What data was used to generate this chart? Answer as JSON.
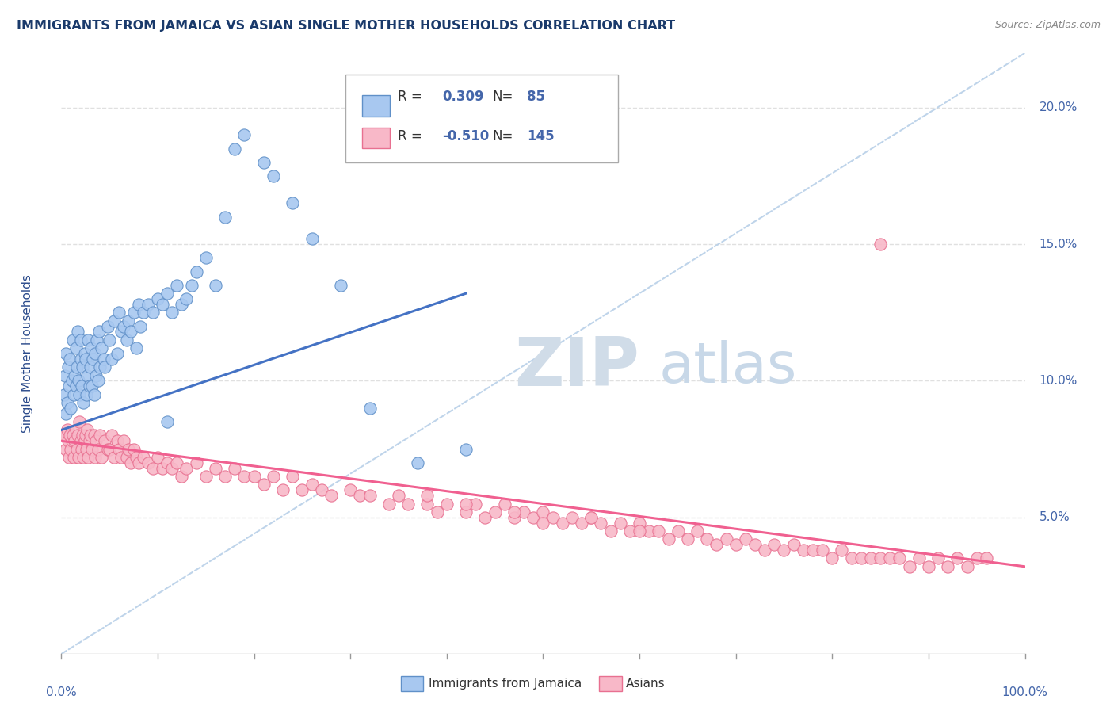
{
  "title": "IMMIGRANTS FROM JAMAICA VS ASIAN SINGLE MOTHER HOUSEHOLDS CORRELATION CHART",
  "source": "Source: ZipAtlas.com",
  "ylabel": "Single Mother Households",
  "watermark_zip": "ZIP",
  "watermark_atlas": "atlas",
  "blue_color": "#a8c8f0",
  "pink_color": "#f8b8c8",
  "blue_edge_color": "#6090c8",
  "pink_edge_color": "#e87090",
  "blue_line_color": "#4472c4",
  "pink_line_color": "#f06090",
  "dashed_line_color": "#b8d0e8",
  "title_color": "#1a3a6b",
  "source_color": "#888888",
  "axis_label_color": "#2a4a8b",
  "tick_color": "#4466aa",
  "background_color": "#ffffff",
  "grid_color": "#e0e0e0",
  "ytick_labels": [
    "5.0%",
    "10.0%",
    "15.0%",
    "20.0%"
  ],
  "ytick_values": [
    5.0,
    10.0,
    15.0,
    20.0
  ],
  "xlim": [
    0.0,
    100.0
  ],
  "ylim": [
    0.0,
    22.0
  ],
  "blue_line_x": [
    0.0,
    42.0
  ],
  "blue_line_y": [
    8.2,
    13.2
  ],
  "pink_line_x": [
    0.0,
    100.0
  ],
  "pink_line_y": [
    7.8,
    3.2
  ],
  "blue_scatter_x": [
    0.3,
    0.4,
    0.5,
    0.5,
    0.6,
    0.7,
    0.8,
    0.9,
    1.0,
    1.1,
    1.2,
    1.3,
    1.4,
    1.5,
    1.5,
    1.6,
    1.7,
    1.8,
    1.9,
    2.0,
    2.0,
    2.1,
    2.2,
    2.3,
    2.4,
    2.5,
    2.6,
    2.7,
    2.8,
    2.9,
    3.0,
    3.1,
    3.2,
    3.3,
    3.4,
    3.5,
    3.6,
    3.7,
    3.8,
    3.9,
    4.0,
    4.2,
    4.4,
    4.5,
    4.8,
    5.0,
    5.2,
    5.5,
    5.8,
    6.0,
    6.2,
    6.5,
    6.8,
    7.0,
    7.2,
    7.5,
    7.8,
    8.0,
    8.2,
    8.5,
    9.0,
    9.5,
    10.0,
    10.5,
    11.0,
    11.5,
    12.0,
    12.5,
    13.0,
    13.5,
    14.0,
    15.0,
    16.0,
    17.0,
    18.0,
    19.0,
    21.0,
    22.0,
    24.0,
    26.0,
    29.0,
    32.0,
    37.0,
    42.0,
    11.0
  ],
  "blue_scatter_y": [
    9.5,
    10.2,
    8.8,
    11.0,
    9.2,
    10.5,
    9.8,
    10.8,
    9.0,
    10.0,
    11.5,
    9.5,
    10.2,
    9.8,
    11.2,
    10.5,
    11.8,
    10.0,
    9.5,
    10.8,
    11.5,
    9.8,
    10.5,
    9.2,
    11.0,
    10.8,
    9.5,
    10.2,
    11.5,
    9.8,
    10.5,
    11.2,
    9.8,
    10.8,
    9.5,
    11.0,
    10.2,
    11.5,
    10.0,
    11.8,
    10.5,
    11.2,
    10.8,
    10.5,
    12.0,
    11.5,
    10.8,
    12.2,
    11.0,
    12.5,
    11.8,
    12.0,
    11.5,
    12.2,
    11.8,
    12.5,
    11.2,
    12.8,
    12.0,
    12.5,
    12.8,
    12.5,
    13.0,
    12.8,
    13.2,
    12.5,
    13.5,
    12.8,
    13.0,
    13.5,
    14.0,
    14.5,
    13.5,
    16.0,
    18.5,
    19.0,
    18.0,
    17.5,
    16.5,
    15.2,
    13.5,
    9.0,
    7.0,
    7.5,
    8.5
  ],
  "pink_scatter_x": [
    0.3,
    0.5,
    0.6,
    0.7,
    0.8,
    0.9,
    1.0,
    1.1,
    1.2,
    1.3,
    1.4,
    1.5,
    1.6,
    1.7,
    1.8,
    1.9,
    2.0,
    2.1,
    2.2,
    2.3,
    2.4,
    2.5,
    2.6,
    2.7,
    2.8,
    2.9,
    3.0,
    3.2,
    3.4,
    3.5,
    3.6,
    3.8,
    4.0,
    4.2,
    4.5,
    4.8,
    5.0,
    5.2,
    5.5,
    5.8,
    6.0,
    6.2,
    6.5,
    6.8,
    7.0,
    7.2,
    7.5,
    7.8,
    8.0,
    8.5,
    9.0,
    9.5,
    10.0,
    10.5,
    11.0,
    11.5,
    12.0,
    12.5,
    13.0,
    14.0,
    15.0,
    16.0,
    17.0,
    18.0,
    19.0,
    20.0,
    21.0,
    22.0,
    23.0,
    24.0,
    25.0,
    26.0,
    27.0,
    28.0,
    30.0,
    31.0,
    32.0,
    34.0,
    35.0,
    36.0,
    38.0,
    39.0,
    40.0,
    42.0,
    43.0,
    44.0,
    45.0,
    46.0,
    47.0,
    48.0,
    49.0,
    50.0,
    51.0,
    52.0,
    53.0,
    54.0,
    55.0,
    56.0,
    57.0,
    58.0,
    59.0,
    60.0,
    61.0,
    62.0,
    63.0,
    64.0,
    65.0,
    66.0,
    67.0,
    68.0,
    69.0,
    70.0,
    71.0,
    72.0,
    73.0,
    74.0,
    75.0,
    76.0,
    77.0,
    78.0,
    79.0,
    80.0,
    81.0,
    82.0,
    83.0,
    84.0,
    85.0,
    86.0,
    87.0,
    88.0,
    89.0,
    90.0,
    91.0,
    92.0,
    93.0,
    94.0,
    95.0,
    96.0,
    50.0,
    55.0,
    60.0,
    38.0,
    42.0,
    47.0,
    85.0
  ],
  "pink_scatter_y": [
    8.0,
    7.5,
    8.2,
    7.8,
    7.2,
    8.0,
    7.5,
    7.8,
    8.0,
    7.2,
    7.8,
    8.2,
    7.5,
    8.0,
    7.2,
    8.5,
    7.8,
    7.5,
    8.0,
    7.2,
    7.8,
    8.0,
    7.5,
    8.2,
    7.2,
    7.8,
    8.0,
    7.5,
    8.0,
    7.2,
    7.8,
    7.5,
    8.0,
    7.2,
    7.8,
    7.5,
    7.5,
    8.0,
    7.2,
    7.8,
    7.5,
    7.2,
    7.8,
    7.2,
    7.5,
    7.0,
    7.5,
    7.2,
    7.0,
    7.2,
    7.0,
    6.8,
    7.2,
    6.8,
    7.0,
    6.8,
    7.0,
    6.5,
    6.8,
    7.0,
    6.5,
    6.8,
    6.5,
    6.8,
    6.5,
    6.5,
    6.2,
    6.5,
    6.0,
    6.5,
    6.0,
    6.2,
    6.0,
    5.8,
    6.0,
    5.8,
    5.8,
    5.5,
    5.8,
    5.5,
    5.5,
    5.2,
    5.5,
    5.2,
    5.5,
    5.0,
    5.2,
    5.5,
    5.0,
    5.2,
    5.0,
    5.2,
    5.0,
    4.8,
    5.0,
    4.8,
    5.0,
    4.8,
    4.5,
    4.8,
    4.5,
    4.8,
    4.5,
    4.5,
    4.2,
    4.5,
    4.2,
    4.5,
    4.2,
    4.0,
    4.2,
    4.0,
    4.2,
    4.0,
    3.8,
    4.0,
    3.8,
    4.0,
    3.8,
    3.8,
    3.8,
    3.5,
    3.8,
    3.5,
    3.5,
    3.5,
    3.5,
    3.5,
    3.5,
    3.2,
    3.5,
    3.2,
    3.5,
    3.2,
    3.5,
    3.2,
    3.5,
    3.5,
    4.8,
    5.0,
    4.5,
    5.8,
    5.5,
    5.2,
    15.0
  ]
}
